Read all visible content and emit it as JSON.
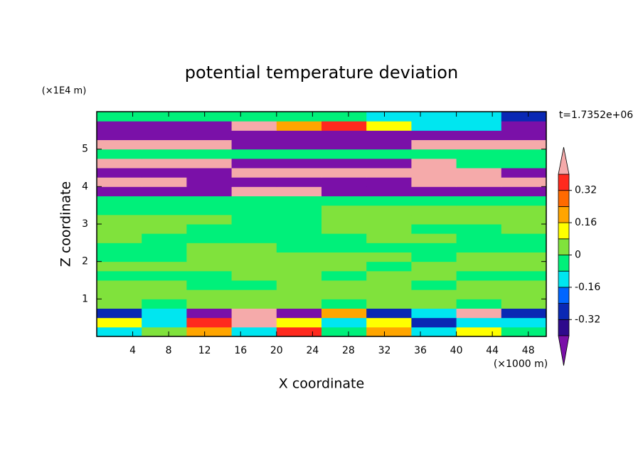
{
  "chart_data": {
    "type": "contour",
    "title": "potential temperature deviation",
    "x_label": "X coordinate",
    "x_unit": "(×1000 m)",
    "y_label": "Z coordinate",
    "y_unit": "(×1E4 m)",
    "annotation": "t=1.7352e+06",
    "xlim": [
      0,
      50
    ],
    "xticks": [
      4,
      8,
      12,
      16,
      20,
      24,
      28,
      32,
      36,
      40,
      44,
      48
    ],
    "ylim": [
      0,
      6
    ],
    "yticks": [
      1,
      2,
      3,
      4,
      5
    ],
    "x": [
      2.5,
      7.5,
      12.5,
      17.5,
      22.5,
      27.5,
      32.5,
      37.5,
      42.5,
      47.5
    ],
    "y": [
      0.125,
      0.375,
      0.625,
      0.875,
      1.125,
      1.375,
      1.625,
      1.875,
      2.125,
      2.375,
      2.625,
      2.875,
      3.125,
      3.375,
      3.625,
      3.875,
      4.125,
      4.375,
      4.625,
      4.875,
      5.125,
      5.375,
      5.625,
      5.875
    ],
    "values": [
      [
        -0.12,
        0.04,
        0.2,
        -0.12,
        0.36,
        -0.04,
        0.2,
        -0.12,
        0.12,
        -0.04
      ],
      [
        0.12,
        -0.12,
        0.36,
        0.5,
        0.12,
        -0.12,
        0.12,
        -0.28,
        -0.12,
        -0.12
      ],
      [
        -0.28,
        -0.12,
        -0.5,
        0.5,
        -0.5,
        0.2,
        -0.28,
        -0.12,
        0.5,
        -0.28
      ],
      [
        0.04,
        -0.04,
        0.04,
        0.04,
        0.04,
        -0.04,
        0.04,
        0.04,
        -0.04,
        0.04
      ],
      [
        0.04,
        0.04,
        0.04,
        0.04,
        0.04,
        0.04,
        0.04,
        0.04,
        0.04,
        0.04
      ],
      [
        0.04,
        0.04,
        -0.04,
        -0.04,
        0.04,
        0.04,
        0.04,
        -0.04,
        0.04,
        0.04
      ],
      [
        -0.04,
        -0.04,
        -0.04,
        0.04,
        0.04,
        -0.04,
        0.04,
        0.04,
        -0.04,
        -0.04
      ],
      [
        0.04,
        0.04,
        0.04,
        0.04,
        0.04,
        0.04,
        -0.04,
        0.04,
        0.04,
        0.04
      ],
      [
        -0.04,
        -0.04,
        0.04,
        0.04,
        0.04,
        0.04,
        0.04,
        -0.04,
        0.04,
        0.04
      ],
      [
        -0.04,
        -0.04,
        0.04,
        0.04,
        -0.04,
        -0.04,
        -0.04,
        -0.04,
        -0.04,
        -0.04
      ],
      [
        0.04,
        -0.04,
        -0.04,
        -0.04,
        -0.04,
        -0.04,
        0.04,
        0.04,
        -0.04,
        -0.04
      ],
      [
        0.04,
        0.04,
        -0.04,
        -0.04,
        -0.04,
        0.04,
        0.04,
        -0.04,
        -0.04,
        0.04
      ],
      [
        0.04,
        0.04,
        0.04,
        -0.04,
        -0.04,
        0.04,
        0.04,
        0.04,
        0.04,
        0.04
      ],
      [
        -0.04,
        -0.04,
        -0.04,
        -0.04,
        -0.04,
        0.04,
        0.04,
        0.04,
        0.04,
        0.04
      ],
      [
        -0.04,
        -0.04,
        -0.04,
        -0.04,
        -0.04,
        -0.04,
        -0.04,
        -0.04,
        -0.04,
        -0.04
      ],
      [
        -0.5,
        -0.5,
        -0.5,
        0.5,
        0.5,
        -0.5,
        -0.5,
        -0.5,
        -0.5,
        -0.5
      ],
      [
        0.5,
        0.5,
        -0.5,
        -0.5,
        -0.5,
        -0.5,
        -0.5,
        0.5,
        0.5,
        0.5
      ],
      [
        -0.5,
        -0.5,
        -0.5,
        0.5,
        0.5,
        0.5,
        0.5,
        0.5,
        0.5,
        -0.5
      ],
      [
        0.5,
        0.5,
        0.5,
        -0.5,
        -0.5,
        -0.5,
        -0.5,
        0.5,
        -0.04,
        -0.04
      ],
      [
        -0.04,
        -0.04,
        -0.04,
        -0.04,
        -0.04,
        -0.04,
        -0.04,
        -0.04,
        -0.04,
        -0.04
      ],
      [
        0.5,
        0.5,
        0.5,
        -0.5,
        -0.5,
        -0.5,
        -0.5,
        0.5,
        0.5,
        0.5
      ],
      [
        -0.5,
        -0.5,
        -0.5,
        -0.5,
        -0.5,
        -0.5,
        -0.5,
        -0.5,
        -0.5,
        -0.5
      ],
      [
        -0.5,
        -0.5,
        -0.5,
        0.5,
        0.2,
        0.36,
        0.12,
        -0.12,
        -0.12,
        -0.5
      ],
      [
        -0.04,
        -0.04,
        -0.04,
        -0.04,
        -0.04,
        -0.04,
        -0.12,
        -0.12,
        -0.12,
        -0.28
      ]
    ],
    "levels": [
      -0.4,
      -0.32,
      -0.24,
      -0.16,
      -0.08,
      0,
      0.08,
      0.16,
      0.24,
      0.32,
      0.4
    ],
    "colors": [
      "#7a10a8",
      "#2e0a8c",
      "#0a28b4",
      "#0066ff",
      "#00e6f0",
      "#00f07a",
      "#80e23c",
      "#ffff00",
      "#ffa500",
      "#ff6a00",
      "#ff2a1e",
      "#f5aaaa"
    ],
    "colorbar_ticks": [
      -0.32,
      -0.16,
      0,
      0.16,
      0.32
    ]
  }
}
